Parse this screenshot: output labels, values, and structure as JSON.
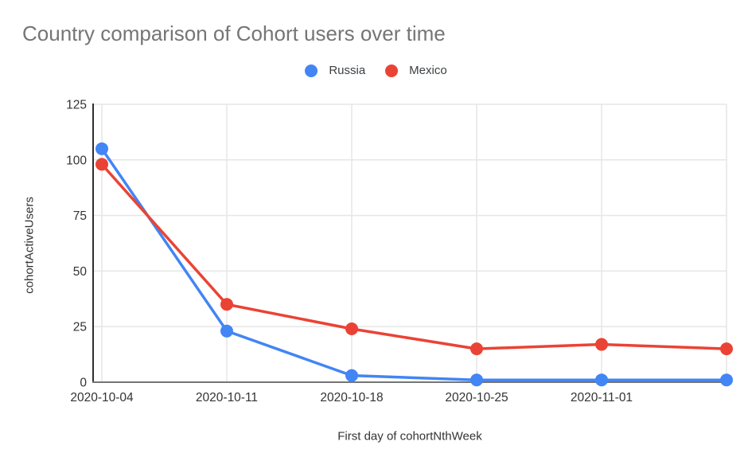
{
  "title": "Country comparison of Cohort users over time",
  "legend": [
    {
      "label": "Russia",
      "color": "#4285F4"
    },
    {
      "label": "Mexico",
      "color": "#EA4335"
    }
  ],
  "colors": {
    "grid": "#e6e6e6",
    "axis_y": "#2e2e2e",
    "axis_x": "#757575",
    "tick_text": "#333333",
    "title_text": "#757575",
    "legend_text": "#3c4043"
  },
  "chart_data": {
    "type": "line",
    "title": "Country comparison of Cohort users over time",
    "xlabel": "First day of cohortNthWeek",
    "ylabel": "cohortActiveUsers",
    "categories": [
      "2020-10-04",
      "2020-10-11",
      "2020-10-18",
      "2020-10-25",
      "2020-11-01",
      ""
    ],
    "series": [
      {
        "name": "Russia",
        "color": "#4285F4",
        "values": [
          105,
          23,
          3,
          1,
          1,
          1
        ]
      },
      {
        "name": "Mexico",
        "color": "#EA4335",
        "values": [
          98,
          35,
          24,
          15,
          17,
          15
        ]
      }
    ],
    "ylim": [
      0,
      125
    ],
    "yticks": [
      0,
      25,
      50,
      75,
      100,
      125
    ],
    "grid": true,
    "legend_position": "top",
    "marker": "circle"
  }
}
